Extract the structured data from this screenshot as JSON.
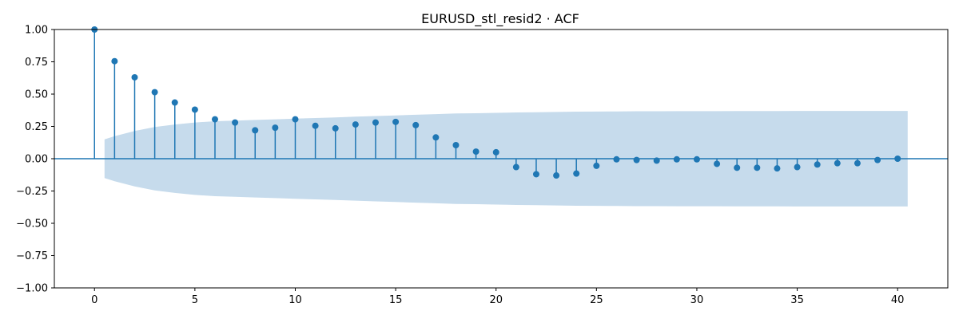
{
  "chart_data": {
    "type": "stem",
    "title": "EURUSD_stl_resid2 · ACF",
    "xlabel": "",
    "ylabel": "",
    "xlim": [
      -2,
      42.5
    ],
    "ylim": [
      -1.0,
      1.0
    ],
    "xticks": [
      0,
      5,
      10,
      15,
      20,
      25,
      30,
      35,
      40
    ],
    "yticks": [
      -1.0,
      -0.75,
      -0.5,
      -0.25,
      0.0,
      0.25,
      0.5,
      0.75,
      1.0
    ],
    "xtick_labels": [
      "0",
      "5",
      "10",
      "15",
      "20",
      "25",
      "30",
      "35",
      "40"
    ],
    "ytick_labels": [
      "−1.00",
      "−0.75",
      "−0.50",
      "−0.25",
      "0.00",
      "0.25",
      "0.50",
      "0.75",
      "1.00"
    ],
    "grid": false,
    "lags": [
      0,
      1,
      2,
      3,
      4,
      5,
      6,
      7,
      8,
      9,
      10,
      11,
      12,
      13,
      14,
      15,
      16,
      17,
      18,
      19,
      20,
      21,
      22,
      23,
      24,
      25,
      26,
      27,
      28,
      29,
      30,
      31,
      32,
      33,
      34,
      35,
      36,
      37,
      38,
      39,
      40
    ],
    "values": [
      1.0,
      0.755,
      0.63,
      0.515,
      0.435,
      0.38,
      0.305,
      0.28,
      0.22,
      0.24,
      0.305,
      0.255,
      0.235,
      0.265,
      0.28,
      0.285,
      0.26,
      0.165,
      0.105,
      0.055,
      0.05,
      -0.065,
      -0.12,
      -0.13,
      -0.115,
      -0.055,
      -0.005,
      -0.01,
      -0.015,
      -0.005,
      -0.005,
      -0.04,
      -0.07,
      -0.07,
      -0.075,
      -0.065,
      -0.045,
      -0.035,
      -0.035,
      -0.01,
      0.0
    ],
    "confint_lags": [
      0.5,
      1,
      2,
      3,
      4,
      5,
      6,
      7,
      8,
      9,
      10,
      11,
      12,
      13,
      14,
      15,
      16,
      17,
      18,
      19,
      20,
      21,
      22,
      23,
      24,
      25,
      26,
      27,
      28,
      29,
      30,
      31,
      32,
      33,
      34,
      35,
      36,
      37,
      38,
      39,
      40,
      40.5
    ],
    "confint_upper": [
      0.15,
      0.175,
      0.215,
      0.245,
      0.265,
      0.28,
      0.29,
      0.295,
      0.3,
      0.305,
      0.31,
      0.315,
      0.32,
      0.325,
      0.33,
      0.335,
      0.34,
      0.345,
      0.35,
      0.352,
      0.355,
      0.358,
      0.36,
      0.362,
      0.364,
      0.365,
      0.366,
      0.367,
      0.367,
      0.368,
      0.368,
      0.368,
      0.369,
      0.369,
      0.369,
      0.37,
      0.37,
      0.37,
      0.37,
      0.37,
      0.37,
      0.37
    ],
    "colors": {
      "stem": "#1f77b4",
      "marker": "#1f77b4",
      "band": "#c6dbec",
      "zero_line": "#1f77b4"
    }
  }
}
